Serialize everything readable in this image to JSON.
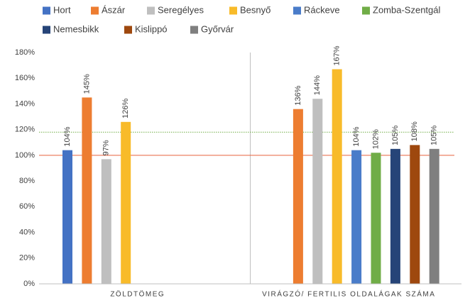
{
  "chart_data": {
    "type": "bar",
    "categories": [
      "ZÖLDTÖMEG",
      "VIRÁGZÓ/ FERTILIS OLDALÁGAK SZÁMA"
    ],
    "series": [
      {
        "name": "Hort",
        "color": "#4472c4",
        "values": [
          104,
          null
        ],
        "value_labels": [
          "104%",
          null
        ]
      },
      {
        "name": "Ászár",
        "color": "#ed7d31",
        "values": [
          145,
          136
        ],
        "value_labels": [
          "145%",
          "136%"
        ]
      },
      {
        "name": "Seregélyes",
        "color": "#bfbfbf",
        "values": [
          97,
          144
        ],
        "value_labels": [
          "97%",
          "144%"
        ]
      },
      {
        "name": "Besnyő",
        "color": "#f8bb2a",
        "values": [
          126,
          167
        ],
        "value_labels": [
          "126%",
          "167%"
        ]
      },
      {
        "name": "Ráckeve",
        "color": "#4a7cc9",
        "values": [
          null,
          104
        ],
        "value_labels": [
          null,
          "104%"
        ]
      },
      {
        "name": "Zomba-Szentgál",
        "color": "#70ad47",
        "values": [
          null,
          102
        ],
        "value_labels": [
          null,
          "102%"
        ]
      },
      {
        "name": "Nemesbikk",
        "color": "#264478",
        "values": [
          null,
          105
        ],
        "value_labels": [
          null,
          "105%"
        ]
      },
      {
        "name": "Kislippó",
        "color": "#9e480e",
        "values": [
          null,
          108
        ],
        "value_labels": [
          null,
          "108%"
        ]
      },
      {
        "name": "Győrvár",
        "color": "#7f7f7f",
        "values": [
          null,
          105
        ],
        "value_labels": [
          null,
          "105%"
        ]
      }
    ],
    "ylim": [
      0,
      180
    ],
    "yticks": [
      {
        "value": 0,
        "label": "0%"
      },
      {
        "value": 20,
        "label": "20%"
      },
      {
        "value": 40,
        "label": "40%"
      },
      {
        "value": 60,
        "label": "60%"
      },
      {
        "value": 80,
        "label": "80%"
      },
      {
        "value": 100,
        "label": "100%"
      },
      {
        "value": 120,
        "label": "120%"
      },
      {
        "value": 140,
        "label": "140%"
      },
      {
        "value": 160,
        "label": "160%"
      },
      {
        "value": 180,
        "label": "180%"
      }
    ],
    "reference_lines": [
      {
        "value": 100,
        "color": "#e8603c",
        "style": "solid"
      },
      {
        "value": 118,
        "color": "#70ad47",
        "style": "dotted"
      }
    ],
    "grid": false
  }
}
